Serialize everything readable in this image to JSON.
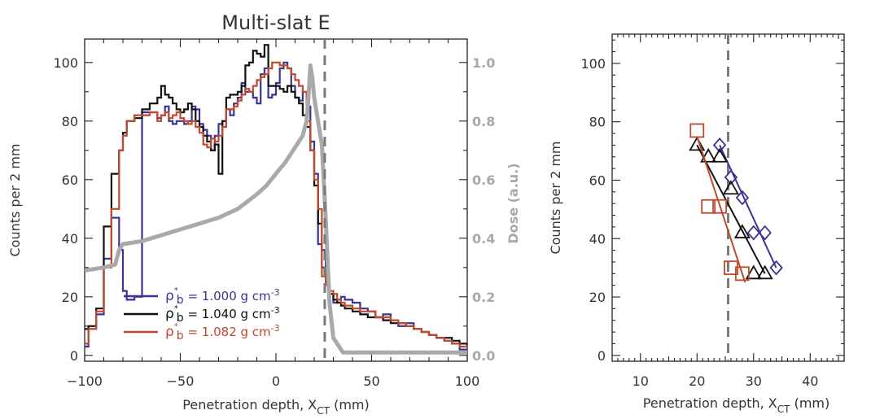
{
  "chart_data": [
    {
      "type": "line",
      "title": "Multi-slat E",
      "xlabel": "Penetration depth, X",
      "xlabel_sub": "CT",
      "xlabel_unit": " (mm)",
      "ylabel": "Counts per 2 mm",
      "y2label": "Dose (a.u.)",
      "xlim": [
        -100,
        100
      ],
      "ylim": [
        -2,
        108
      ],
      "y2lim": [
        -0.02,
        1.08
      ],
      "xticks": [
        -100,
        -50,
        0,
        50,
        100
      ],
      "yticks": [
        0,
        20,
        40,
        60,
        80,
        100
      ],
      "y2ticks": [
        "0.0",
        "0.2",
        "0.4",
        "0.6",
        "0.8",
        "1.0"
      ],
      "vline_x": 25.5,
      "legend_position": "lower-left",
      "series": [
        {
          "name": "1.000",
          "legend_prefix": "ρ",
          "legend_sup": "*",
          "legend_sub": "b",
          "legend_suffix": " = 1.000 g cm",
          "legend_exp": "-3",
          "color": "#3b3494",
          "x": [
            -100,
            -98,
            -94,
            -90,
            -86,
            -82,
            -80,
            -78,
            -74,
            -70,
            -66,
            -62,
            -60,
            -58,
            -56,
            -54,
            -52,
            -50,
            -48,
            -46,
            -44,
            -42,
            -40,
            -38,
            -36,
            -34,
            -32,
            -30,
            -28,
            -26,
            -24,
            -22,
            -20,
            -18,
            -16,
            -14,
            -12,
            -10,
            -8,
            -6,
            -4,
            -2,
            0,
            2,
            4,
            6,
            8,
            10,
            12,
            14,
            16,
            18,
            20,
            22,
            24,
            26,
            28,
            30,
            32,
            34,
            36,
            40,
            44,
            48,
            52,
            56,
            60,
            64,
            68,
            72,
            76,
            80,
            84,
            88,
            92,
            96,
            100
          ],
          "values": [
            3,
            9,
            14,
            33,
            47,
            36,
            22,
            19,
            20,
            83,
            83,
            81,
            82,
            85,
            80,
            79,
            80,
            80,
            79,
            80,
            85,
            84,
            79,
            77,
            75,
            70,
            75,
            79,
            80,
            84,
            82,
            86,
            88,
            93,
            90,
            90,
            88,
            86,
            96,
            98,
            88,
            89,
            93,
            98,
            100,
            98,
            92,
            88,
            87,
            90,
            85,
            73,
            62,
            38,
            36,
            25,
            21,
            18,
            19,
            20,
            19,
            18,
            16,
            15,
            13,
            14,
            12,
            10,
            11,
            9,
            8,
            7,
            6,
            5,
            4,
            2,
            2
          ]
        },
        {
          "name": "1.040",
          "legend_prefix": "ρ",
          "legend_sup": "*",
          "legend_sub": "b",
          "legend_suffix": " = 1.040 g cm",
          "legend_exp": "-3",
          "color": "#111111",
          "x": [
            -100,
            -98,
            -94,
            -90,
            -86,
            -82,
            -80,
            -78,
            -74,
            -70,
            -66,
            -62,
            -60,
            -58,
            -56,
            -54,
            -52,
            -50,
            -48,
            -46,
            -44,
            -42,
            -40,
            -38,
            -36,
            -34,
            -32,
            -30,
            -28,
            -26,
            -24,
            -22,
            -20,
            -18,
            -16,
            -14,
            -12,
            -10,
            -8,
            -6,
            -4,
            -2,
            0,
            2,
            4,
            6,
            8,
            10,
            12,
            14,
            16,
            18,
            20,
            22,
            24,
            26,
            28,
            30,
            32,
            34,
            36,
            40,
            44,
            48,
            52,
            56,
            60,
            64,
            68,
            72,
            76,
            80,
            84,
            88,
            92,
            96,
            100
          ],
          "values": [
            9,
            10,
            16,
            44,
            62,
            70,
            76,
            80,
            81,
            84,
            86,
            88,
            92,
            89,
            88,
            86,
            84,
            83,
            84,
            86,
            84,
            80,
            78,
            75,
            73,
            70,
            72,
            62,
            80,
            88,
            89,
            89,
            90,
            92,
            99,
            100,
            104,
            103,
            102,
            106,
            92,
            92,
            92,
            91,
            90,
            92,
            90,
            88,
            86,
            82,
            78,
            70,
            58,
            45,
            30,
            25,
            21,
            19,
            18,
            17,
            16,
            15,
            14,
            13,
            13,
            12,
            11,
            11,
            10,
            9,
            8,
            7,
            6,
            6,
            5,
            4,
            3
          ]
        },
        {
          "name": "1.082",
          "legend_prefix": "ρ",
          "legend_sup": "*",
          "legend_sub": "b",
          "legend_suffix": " = 1.082 g cm",
          "legend_exp": "-3",
          "color": "#c0492e",
          "x": [
            -100,
            -98,
            -94,
            -90,
            -86,
            -82,
            -80,
            -78,
            -74,
            -70,
            -66,
            -62,
            -60,
            -58,
            -56,
            -54,
            -52,
            -50,
            -48,
            -46,
            -44,
            -42,
            -40,
            -38,
            -36,
            -34,
            -32,
            -30,
            -28,
            -26,
            -24,
            -22,
            -20,
            -18,
            -16,
            -14,
            -12,
            -10,
            -8,
            -6,
            -4,
            -2,
            0,
            2,
            4,
            6,
            8,
            10,
            12,
            14,
            16,
            18,
            20,
            22,
            24,
            26,
            28,
            30,
            32,
            34,
            36,
            40,
            44,
            48,
            52,
            56,
            60,
            64,
            68,
            72,
            76,
            80,
            84,
            88,
            92,
            96,
            100
          ],
          "values": [
            4,
            9,
            15,
            30,
            50,
            70,
            75,
            80,
            82,
            82,
            83,
            80,
            82,
            83,
            81,
            82,
            83,
            81,
            80,
            79,
            80,
            78,
            76,
            72,
            71,
            74,
            73,
            75,
            78,
            84,
            84,
            85,
            87,
            89,
            91,
            90,
            92,
            94,
            95,
            96,
            98,
            100,
            100,
            99,
            99,
            98,
            96,
            94,
            92,
            90,
            80,
            70,
            60,
            50,
            27,
            24,
            22,
            21,
            19,
            18,
            17,
            16,
            15,
            15,
            13,
            13,
            12,
            11,
            10,
            9,
            8,
            7,
            6,
            5,
            4,
            3,
            3
          ]
        },
        {
          "name": "Dose",
          "axis": "y2",
          "color": "#a9a9a9",
          "x": [
            -100,
            -90,
            -84,
            -82,
            -80,
            -70,
            -60,
            -50,
            -40,
            -30,
            -20,
            -10,
            -5,
            0,
            5,
            10,
            14,
            16,
            17,
            18,
            19,
            20,
            22,
            24,
            26,
            28,
            30,
            35,
            40,
            100
          ],
          "values": [
            0.29,
            0.3,
            0.31,
            0.36,
            0.38,
            0.39,
            0.41,
            0.43,
            0.45,
            0.47,
            0.5,
            0.55,
            0.58,
            0.62,
            0.66,
            0.71,
            0.75,
            0.8,
            0.88,
            0.99,
            0.95,
            0.88,
            0.8,
            0.72,
            0.47,
            0.18,
            0.06,
            0.01,
            0.01,
            0.01
          ]
        }
      ]
    },
    {
      "type": "scatter",
      "title": "",
      "xlabel": "Penetration depth, X",
      "xlabel_sub": "CT",
      "xlabel_unit": " (mm)",
      "ylabel": "Counts per 2 mm",
      "xlim": [
        5,
        46
      ],
      "ylim": [
        -2,
        110
      ],
      "xticks": [
        10,
        20,
        30,
        40
      ],
      "yticks": [
        0,
        20,
        40,
        60,
        80,
        100
      ],
      "vline_x": 25.5,
      "series": [
        {
          "name": "1.000",
          "marker": "diamond",
          "color": "#3b3494",
          "x": [
            24,
            26,
            28,
            30,
            32,
            34
          ],
          "values": [
            72,
            61,
            54,
            42,
            42,
            30
          ],
          "fit": [
            [
              24,
              72
            ],
            [
              34,
              30
            ]
          ]
        },
        {
          "name": "1.040",
          "marker": "triangle",
          "color": "#111111",
          "x": [
            20,
            22,
            24,
            26,
            28,
            30,
            32
          ],
          "values": [
            72,
            68,
            68,
            57,
            42,
            28,
            28
          ],
          "fit": [
            [
              20,
              72
            ],
            [
              32,
              28
            ]
          ]
        },
        {
          "name": "1.082",
          "marker": "square",
          "color": "#c0492e",
          "x": [
            20,
            22,
            24,
            26,
            28
          ],
          "values": [
            77,
            51,
            51,
            30,
            28
          ],
          "fit": [
            [
              20,
              75
            ],
            [
              28.5,
              25
            ]
          ]
        }
      ]
    }
  ]
}
